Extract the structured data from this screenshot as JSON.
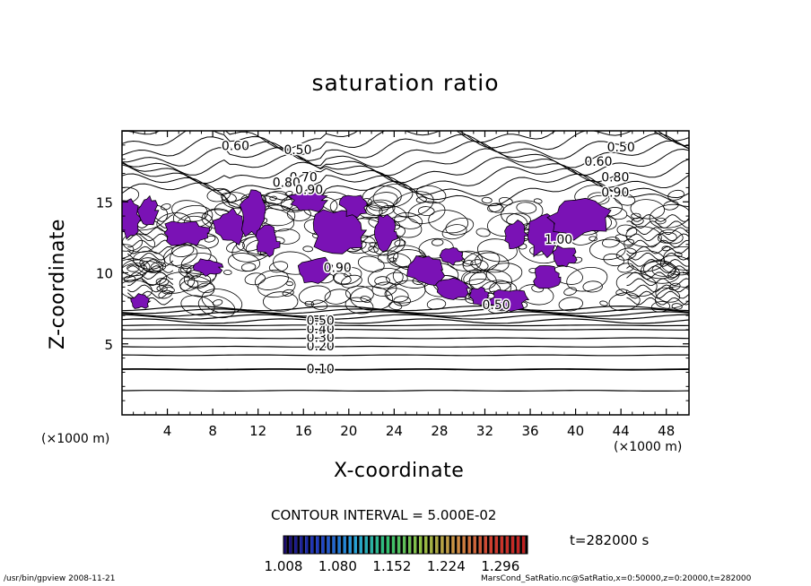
{
  "figure": {
    "title": "saturation ratio",
    "xlabel": "X-coordinate",
    "ylabel": "Z-coordinate",
    "x_unit_left": "(×1000 m)",
    "x_unit_right": "(×1000 m)",
    "contour_interval_text": "CONTOUR INTERVAL = 5.000E-02",
    "time_text": "t=282000 s",
    "footer_left": "/usr/bin/gpview   2008-11-21",
    "footer_right": "MarsCond_SatRatio.nc@SatRatio,x=0:50000,z=0:20000,t=282000"
  },
  "chart_data": {
    "type": "contour",
    "title": "saturation ratio",
    "xlabel": "X-coordinate",
    "ylabel": "Z-coordinate",
    "x_unit": "×1000 m",
    "xlim": [
      0,
      50
    ],
    "ylim": [
      0,
      20
    ],
    "x_ticks": [
      4,
      8,
      12,
      16,
      20,
      24,
      28,
      32,
      36,
      40,
      44,
      48
    ],
    "y_ticks": [
      5,
      10,
      15
    ],
    "contour_interval": 0.05,
    "contour_labels": [
      {
        "text": "0.10",
        "x": 17.5,
        "z": 3.2
      },
      {
        "text": "0.20",
        "x": 17.5,
        "z": 4.8
      },
      {
        "text": "0.30",
        "x": 17.5,
        "z": 5.4
      },
      {
        "text": "0.40",
        "x": 17.5,
        "z": 6.0
      },
      {
        "text": "0.50",
        "x": 17.5,
        "z": 6.6
      },
      {
        "text": "0.50",
        "x": 15.5,
        "z": 18.6
      },
      {
        "text": "0.60",
        "x": 10.0,
        "z": 18.9
      },
      {
        "text": "0.70",
        "x": 16.0,
        "z": 16.7
      },
      {
        "text": "0.80",
        "x": 14.5,
        "z": 16.3
      },
      {
        "text": "0.90",
        "x": 16.5,
        "z": 15.8
      },
      {
        "text": "0.50",
        "x": 44.0,
        "z": 18.8
      },
      {
        "text": "0.60",
        "x": 42.0,
        "z": 17.8
      },
      {
        "text": "0.80",
        "x": 43.5,
        "z": 16.7
      },
      {
        "text": "0.90",
        "x": 43.5,
        "z": 15.6
      },
      {
        "text": "1.00",
        "x": 38.5,
        "z": 12.3
      },
      {
        "text": "0.90",
        "x": 19.0,
        "z": 10.3
      },
      {
        "text": "0.50",
        "x": 33.0,
        "z": 7.7
      }
    ],
    "supersaturated_regions_shading": "purple where saturation ratio > 1.008",
    "colorbar": {
      "ticks": [
        "1.008",
        "1.080",
        "1.152",
        "1.224",
        "1.296"
      ],
      "range": [
        1.008,
        1.332
      ],
      "colors": [
        "#1a0a6e",
        "#1e3cc8",
        "#22a0e0",
        "#30c070",
        "#90c040",
        "#d09040",
        "#d04030",
        "#c02020"
      ]
    }
  }
}
